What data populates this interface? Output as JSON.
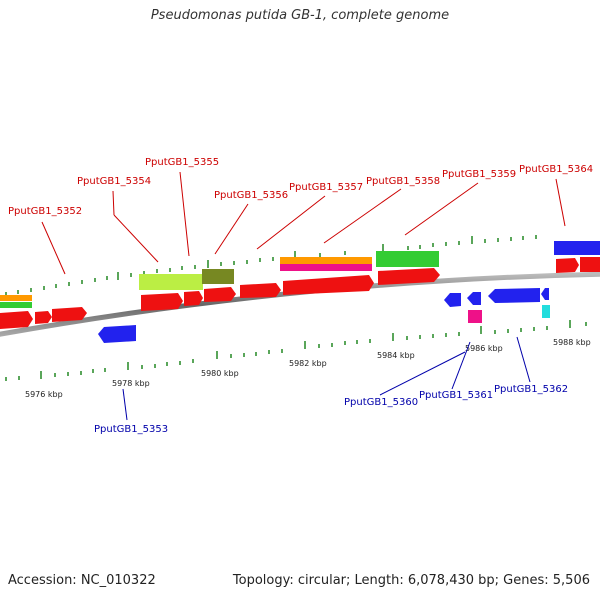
{
  "title": "Pseudomonas putida GB-1, complete genome",
  "footer": {
    "accession": "Accession: NC_010322",
    "summary": "Topology: circular; Length: 6,078,430 bp; Genes: 5,506"
  },
  "scale_labels": [
    "5976 kbp",
    "5978 kbp",
    "5980 kbp",
    "5982 kbp",
    "5984 kbp",
    "5986 kbp",
    "5988 kbp"
  ],
  "genes_top": [
    "PputGB1_5352",
    "PputGB1_5354",
    "PputGB1_5355",
    "PputGB1_5356",
    "PputGB1_5357",
    "PputGB1_5358",
    "PputGB1_5359",
    "PputGB1_5364"
  ],
  "genes_bottom": [
    "PputGB1_5353",
    "PputGB1_5360",
    "PputGB1_5361",
    "PputGB1_5362"
  ],
  "colors": {
    "top_label": "#cc0000",
    "bottom_label": "#0000aa",
    "tick": "#228822",
    "backbone": "#888888",
    "cds_red": "#ee1111",
    "cds_blue": "#2222ee",
    "lightgreen": "#bbee44",
    "olive": "#778822",
    "orange": "#ff9900",
    "magenta": "#ee1188",
    "green": "#33cc33",
    "cyan": "#22dddd"
  }
}
